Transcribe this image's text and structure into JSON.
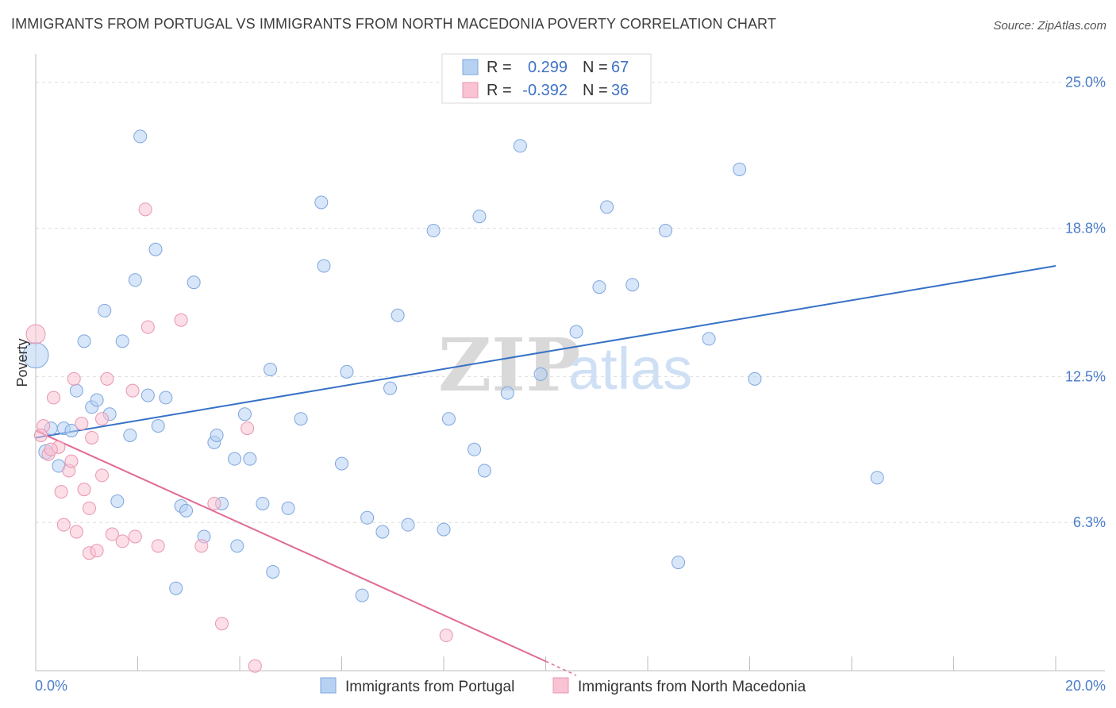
{
  "title": "IMMIGRANTS FROM PORTUGAL VS IMMIGRANTS FROM NORTH MACEDONIA POVERTY CORRELATION CHART",
  "source": "Source: ZipAtlas.com",
  "watermark": {
    "zip": "ZIP",
    "atlas": "atlas"
  },
  "legend": {
    "rows": [
      {
        "r_label": "R = ",
        "r_value": "0.299",
        "n_label": "N = ",
        "n_value": "67",
        "color": "#b7d1f2",
        "stroke": "#7ea6df"
      },
      {
        "r_label": "R = ",
        "r_value": "-0.392",
        "n_label": "N = ",
        "n_value": "36",
        "color": "#f9c3d3",
        "stroke": "#e895b0"
      }
    ]
  },
  "bottom_legend": [
    {
      "label": "Immigrants from Portugal",
      "color": "#b7d1f2",
      "stroke": "#7ea6df"
    },
    {
      "label": "Immigrants from North Macedonia",
      "color": "#f9c3d3",
      "stroke": "#e895b0"
    }
  ],
  "chart_data": {
    "type": "scatter",
    "ylabel": "Poverty",
    "xlim": [
      0,
      20
    ],
    "ylim": [
      0,
      25.8
    ],
    "x_tick_labels": [
      {
        "value": 0,
        "label": "0.0%"
      },
      {
        "value": 20,
        "label": "20.0%"
      }
    ],
    "y_tick_labels": [
      {
        "value": 6.3,
        "label": "6.3%"
      },
      {
        "value": 12.5,
        "label": "12.5%"
      },
      {
        "value": 18.8,
        "label": "18.8%"
      },
      {
        "value": 25.0,
        "label": "25.0%"
      }
    ],
    "grid": true,
    "series": [
      {
        "name": "Immigrants from Portugal",
        "color": "#b7d1f2",
        "stroke": "#7ea6df",
        "line_color": "#3671c6",
        "trend": [
          [
            0,
            9.9
          ],
          [
            20,
            17.2
          ]
        ],
        "points": [
          [
            0.0,
            13.4,
            16
          ],
          [
            0.2,
            9.3,
            9
          ],
          [
            0.3,
            10.3,
            8
          ],
          [
            0.45,
            8.7,
            8
          ],
          [
            0.55,
            10.3,
            8
          ],
          [
            0.7,
            10.2,
            8
          ],
          [
            0.8,
            11.9,
            8
          ],
          [
            0.95,
            14.0,
            8
          ],
          [
            1.1,
            11.2,
            8
          ],
          [
            1.2,
            11.5,
            8
          ],
          [
            1.35,
            15.3,
            8
          ],
          [
            1.45,
            10.9,
            8
          ],
          [
            1.6,
            7.2,
            8
          ],
          [
            1.7,
            14.0,
            8
          ],
          [
            1.85,
            10.0,
            8
          ],
          [
            1.95,
            16.6,
            8
          ],
          [
            2.05,
            22.7,
            8
          ],
          [
            2.2,
            11.7,
            8
          ],
          [
            2.35,
            17.9,
            8
          ],
          [
            2.4,
            10.4,
            8
          ],
          [
            2.55,
            11.6,
            8
          ],
          [
            2.75,
            3.5,
            8
          ],
          [
            2.85,
            7.0,
            8
          ],
          [
            2.95,
            6.8,
            8
          ],
          [
            3.1,
            16.5,
            8
          ],
          [
            3.3,
            5.7,
            8
          ],
          [
            3.5,
            9.7,
            8
          ],
          [
            3.55,
            10.0,
            8
          ],
          [
            3.65,
            7.1,
            8
          ],
          [
            3.9,
            9.0,
            8
          ],
          [
            3.95,
            5.3,
            8
          ],
          [
            4.1,
            10.9,
            8
          ],
          [
            4.2,
            9.0,
            8
          ],
          [
            4.45,
            7.1,
            8
          ],
          [
            4.6,
            12.8,
            8
          ],
          [
            4.65,
            4.2,
            8
          ],
          [
            4.95,
            6.9,
            8
          ],
          [
            5.2,
            10.7,
            8
          ],
          [
            5.6,
            19.9,
            8
          ],
          [
            5.65,
            17.2,
            8
          ],
          [
            6.0,
            8.8,
            8
          ],
          [
            6.1,
            12.7,
            8
          ],
          [
            6.5,
            6.5,
            8
          ],
          [
            6.8,
            5.9,
            8
          ],
          [
            6.95,
            12.0,
            8
          ],
          [
            7.1,
            15.1,
            8
          ],
          [
            7.3,
            6.2,
            8
          ],
          [
            7.8,
            18.7,
            8
          ],
          [
            8.0,
            6.0,
            8
          ],
          [
            8.1,
            10.7,
            8
          ],
          [
            8.6,
            9.4,
            8
          ],
          [
            8.7,
            19.3,
            8
          ],
          [
            8.8,
            8.5,
            8
          ],
          [
            9.25,
            11.8,
            8
          ],
          [
            9.5,
            22.3,
            8
          ],
          [
            9.9,
            12.6,
            8
          ],
          [
            10.6,
            14.4,
            8
          ],
          [
            11.05,
            16.3,
            8
          ],
          [
            11.2,
            19.7,
            8
          ],
          [
            11.7,
            16.4,
            8
          ],
          [
            12.35,
            18.7,
            8
          ],
          [
            12.6,
            4.6,
            8
          ],
          [
            13.2,
            14.1,
            8
          ],
          [
            13.8,
            21.3,
            8
          ],
          [
            14.1,
            12.4,
            8
          ],
          [
            16.5,
            8.2,
            8
          ],
          [
            6.4,
            3.2,
            8
          ]
        ]
      },
      {
        "name": "Immigrants from North Macedonia",
        "color": "#f9c3d3",
        "stroke": "#e895b0",
        "line_color": "#e06b96",
        "trend": [
          [
            0,
            10.2
          ],
          [
            10.0,
            0.4
          ]
        ],
        "trend_dashed": [
          [
            10.0,
            0.4
          ],
          [
            10.6,
            -0.2
          ]
        ],
        "points": [
          [
            0.0,
            14.3,
            12
          ],
          [
            0.15,
            10.4,
            8
          ],
          [
            0.25,
            9.2,
            8
          ],
          [
            0.35,
            11.6,
            8
          ],
          [
            0.45,
            9.5,
            8
          ],
          [
            0.5,
            7.6,
            8
          ],
          [
            0.55,
            6.2,
            8
          ],
          [
            0.65,
            8.5,
            8
          ],
          [
            0.7,
            8.9,
            8
          ],
          [
            0.75,
            12.4,
            8
          ],
          [
            0.8,
            5.9,
            8
          ],
          [
            0.9,
            10.5,
            8
          ],
          [
            0.95,
            7.7,
            8
          ],
          [
            1.05,
            6.9,
            8
          ],
          [
            1.05,
            5.0,
            8
          ],
          [
            1.1,
            9.9,
            8
          ],
          [
            1.2,
            5.1,
            8
          ],
          [
            1.3,
            8.3,
            8
          ],
          [
            1.3,
            10.7,
            8
          ],
          [
            1.4,
            12.4,
            8
          ],
          [
            1.5,
            5.8,
            8
          ],
          [
            1.7,
            5.5,
            8
          ],
          [
            1.9,
            11.9,
            8
          ],
          [
            1.95,
            5.7,
            8
          ],
          [
            2.15,
            19.6,
            8
          ],
          [
            2.2,
            14.6,
            8
          ],
          [
            2.4,
            5.3,
            8
          ],
          [
            2.85,
            14.9,
            8
          ],
          [
            3.25,
            5.3,
            8
          ],
          [
            3.5,
            7.1,
            8
          ],
          [
            3.65,
            2.0,
            8
          ],
          [
            4.15,
            10.3,
            8
          ],
          [
            4.3,
            0.2,
            8
          ],
          [
            8.05,
            1.5,
            8
          ],
          [
            0.1,
            10.0,
            8
          ],
          [
            0.3,
            9.4,
            8
          ]
        ]
      }
    ]
  }
}
